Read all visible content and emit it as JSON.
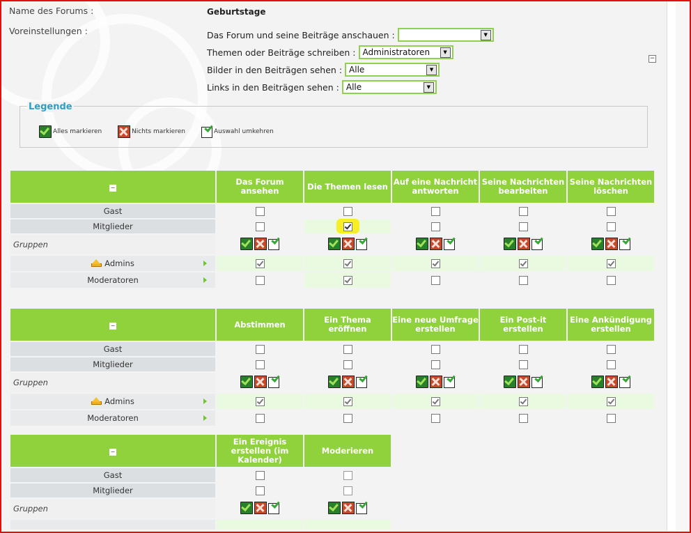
{
  "forum": {
    "name_label": "Name des Forums :",
    "name_value": "Geburtstage",
    "prefs_label": "Voreinstellungen :",
    "prefs": [
      {
        "label": "Das Forum und seine Beiträge anschauen :",
        "value": ""
      },
      {
        "label": "Themen oder Beiträge schreiben :",
        "value": "Administratoren"
      },
      {
        "label": "Bilder in den Beiträgen sehen :",
        "value": "Alle"
      },
      {
        "label": "Links in den Beiträgen sehen :",
        "value": "Alle"
      }
    ]
  },
  "legend": {
    "title": "Legende",
    "items": [
      "Alles markieren",
      "Nichts markieren",
      "Auswahl umkehren"
    ]
  },
  "rows": {
    "guest": "Gast",
    "members": "Mitglieder",
    "groups": "Gruppen",
    "admins": "Admins",
    "moderators": "Moderatoren"
  },
  "tables": [
    {
      "columns": [
        "Das Forum ansehen",
        "Die Themen lesen",
        "Auf eine Nachricht antworten",
        "Seine Nachrichten bearbeiten",
        "Seine Nachrichten löschen"
      ],
      "guest": [
        false,
        false,
        false,
        false,
        false
      ],
      "members": [
        false,
        true,
        false,
        false,
        false
      ],
      "admins": [
        true,
        true,
        true,
        true,
        true
      ],
      "moderators": [
        false,
        true,
        false,
        false,
        false
      ]
    },
    {
      "columns": [
        "Abstimmen",
        "Ein Thema eröffnen",
        "Eine neue Umfrage erstellen",
        "Ein Post-it erstellen",
        "Eine Ankündigung erstellen"
      ],
      "guest": [
        false,
        false,
        false,
        false,
        false
      ],
      "members": [
        false,
        false,
        false,
        false,
        false
      ],
      "admins": [
        true,
        true,
        true,
        true,
        true
      ],
      "moderators": [
        false,
        false,
        false,
        false,
        false
      ]
    },
    {
      "columns": [
        "Ein Ereignis erstellen (im Kalender)",
        "Moderieren"
      ],
      "guest": [
        false,
        false
      ],
      "members": [
        false,
        false
      ]
    }
  ],
  "colors": {
    "accent": "#8fd23c",
    "frame": "#e01010",
    "legend_title": "#2aa0c4",
    "highlight": "#f7ee28"
  }
}
